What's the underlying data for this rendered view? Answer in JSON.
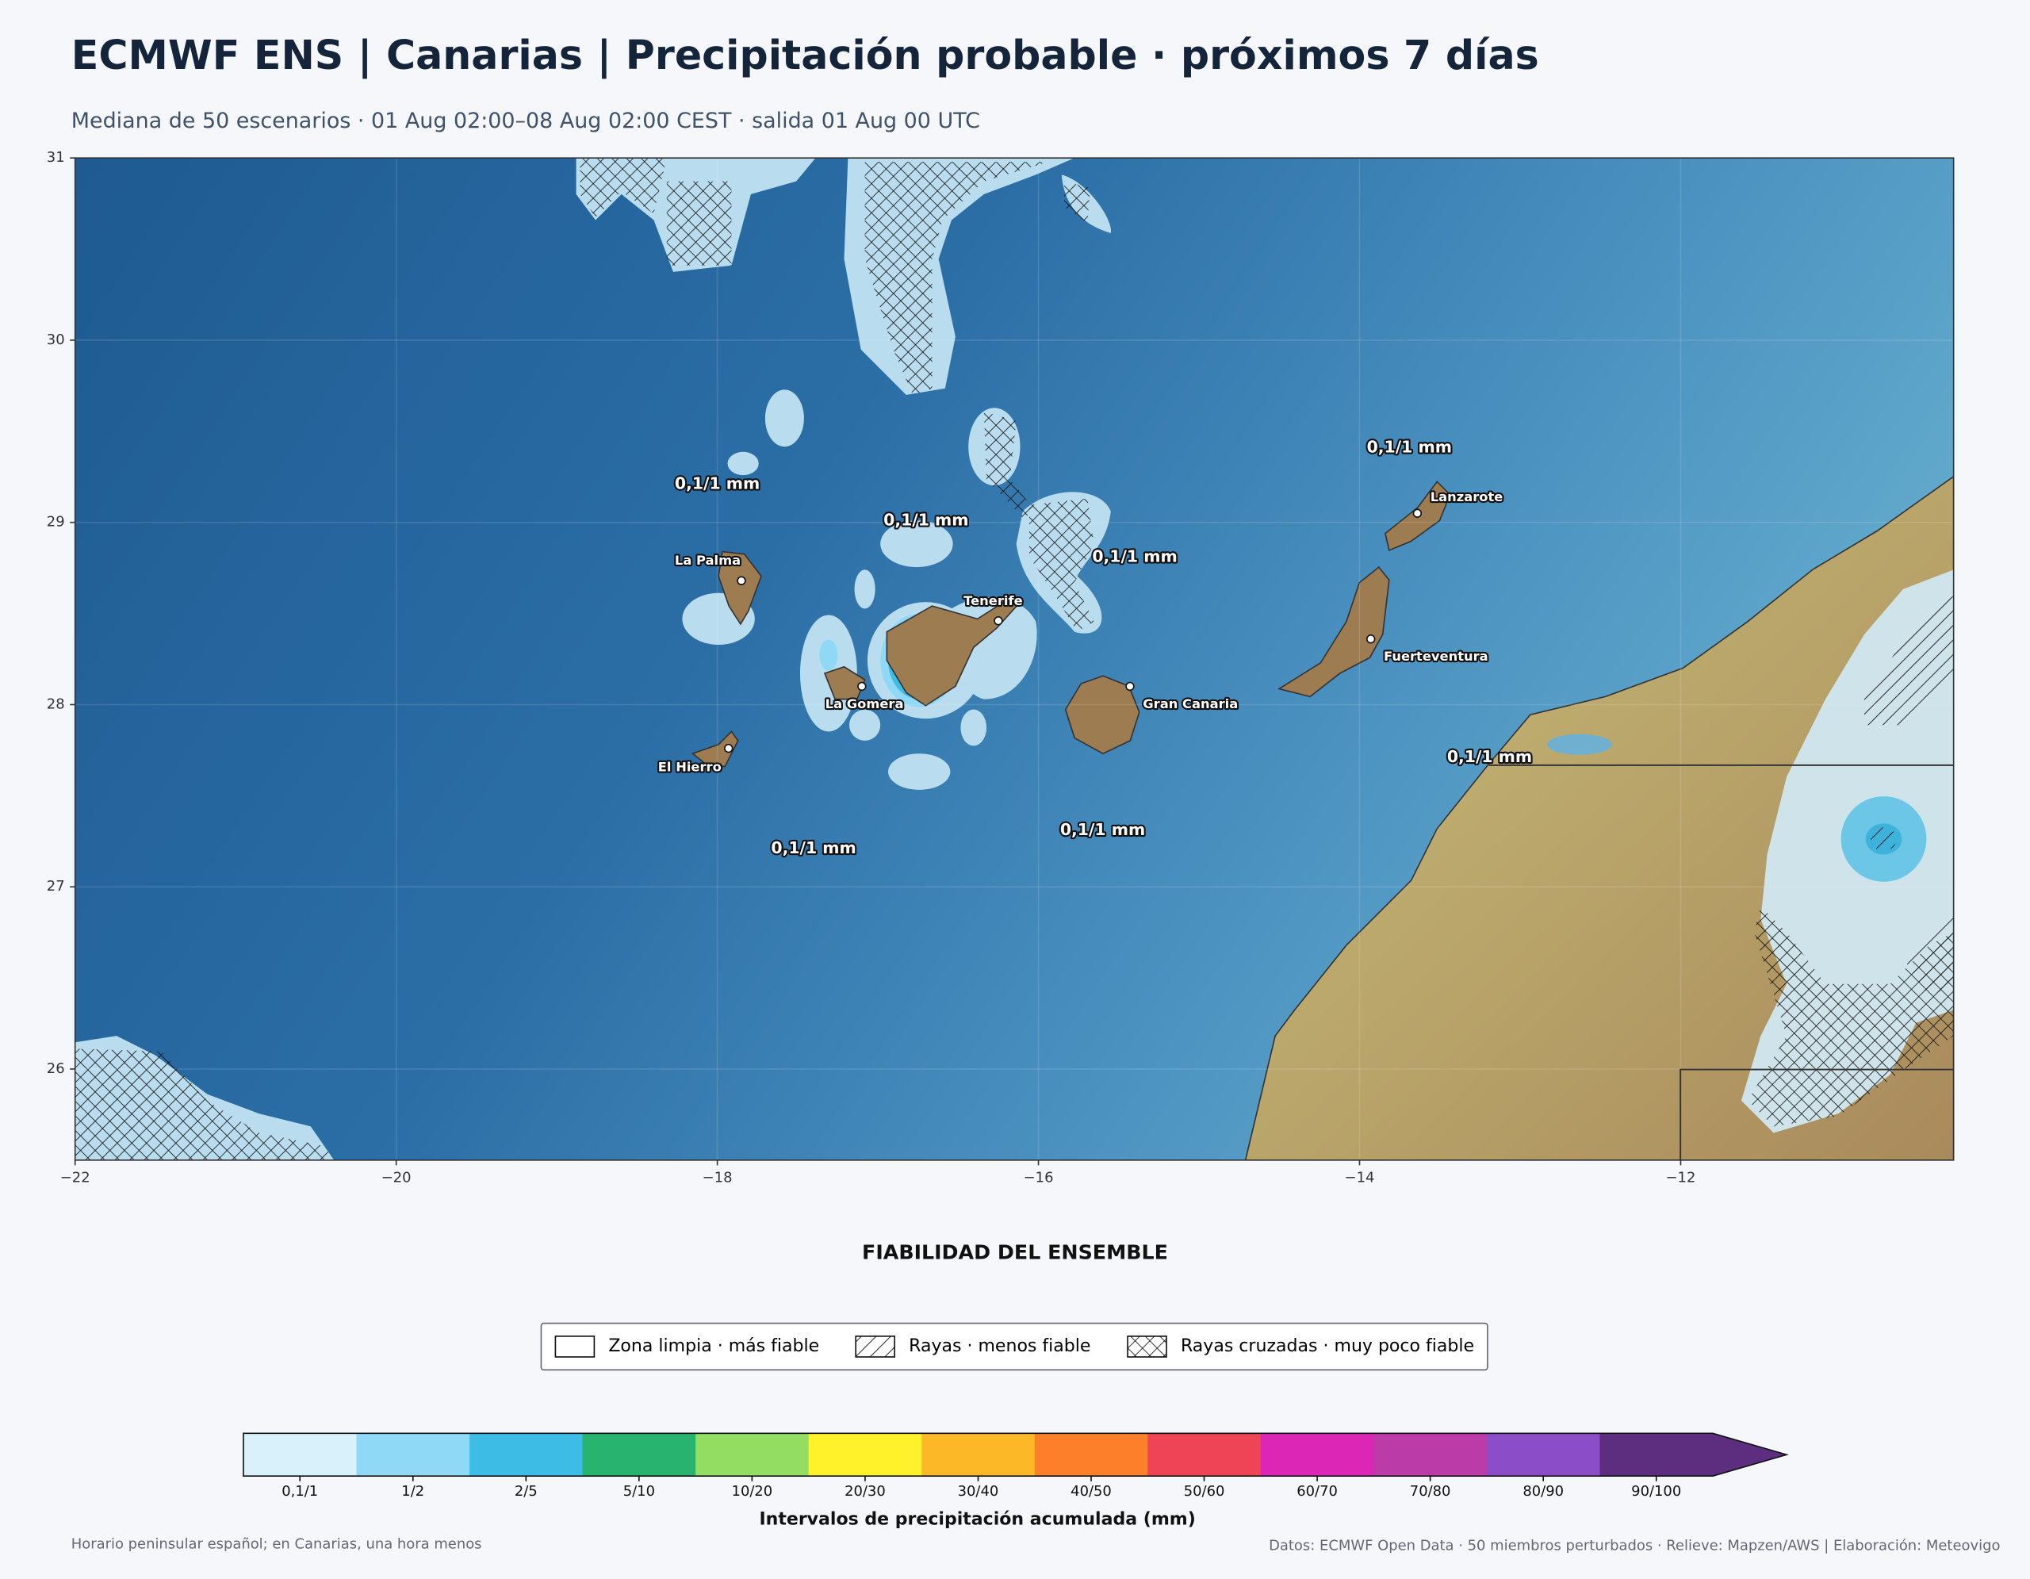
{
  "header": {
    "title": "ECMWF ENS | Canarias | Precipitación probable · próximos 7 días",
    "subtitle": "Mediana de 50 escenarios · 01 Aug 02:00–08 Aug 02:00 CEST · salida 01 Aug 00 UTC"
  },
  "map": {
    "xlim": [
      -22,
      -10.3
    ],
    "ylim": [
      25.5,
      31
    ],
    "xticks": [
      {
        "value": -22,
        "label": "−22"
      },
      {
        "value": -20,
        "label": "−20"
      },
      {
        "value": -18,
        "label": "−18"
      },
      {
        "value": -16,
        "label": "−16"
      },
      {
        "value": -14,
        "label": "−14"
      },
      {
        "value": -12,
        "label": "−12"
      }
    ],
    "yticks": [
      26,
      27,
      28,
      29,
      30,
      31
    ],
    "grid": true,
    "places": [
      {
        "name": "Lanzarote",
        "lon": -13.64,
        "lat": 29.05
      },
      {
        "name": "Fuerteventura",
        "lon": -13.93,
        "lat": 28.36
      },
      {
        "name": "Gran Canaria",
        "lon": -15.43,
        "lat": 28.1
      },
      {
        "name": "Tenerife",
        "lon": -16.25,
        "lat": 28.46
      },
      {
        "name": "La Gomera",
        "lon": -17.1,
        "lat": 28.1
      },
      {
        "name": "La Palma",
        "lon": -17.85,
        "lat": 28.68
      },
      {
        "name": "El Hierro",
        "lon": -17.93,
        "lat": 27.76
      }
    ],
    "annotations": [
      {
        "text": "0,1/1 mm",
        "lon": -18.0,
        "lat": 29.21
      },
      {
        "text": "0,1/1 mm",
        "lon": -16.7,
        "lat": 29.01
      },
      {
        "text": "0,1/1 mm",
        "lon": -15.4,
        "lat": 28.81
      },
      {
        "text": "0,1/1 mm",
        "lon": -13.69,
        "lat": 29.41
      },
      {
        "text": "0,1/1 mm",
        "lon": -13.19,
        "lat": 27.71
      },
      {
        "text": "0,1/1 mm",
        "lon": -15.6,
        "lat": 27.31
      },
      {
        "text": "0,1/1 mm",
        "lon": -17.4,
        "lat": 27.21
      }
    ]
  },
  "legend": {
    "title": "FIABILIDAD DEL ENSEMBLE",
    "items": [
      "Zona limpia · más fiable",
      "Rayas · menos fiable",
      "Rayas cruzadas · muy poco fiable"
    ]
  },
  "colorbar": {
    "label": "Intervalos de precipitación acumulada (mm)",
    "classes": [
      {
        "label": "0,1/1",
        "color": "#d8f1fb"
      },
      {
        "label": "1/2",
        "color": "#8fd9f7"
      },
      {
        "label": "2/5",
        "color": "#3dbde6"
      },
      {
        "label": "5/10",
        "color": "#28b46e"
      },
      {
        "label": "10/20",
        "color": "#93dd63"
      },
      {
        "label": "20/30",
        "color": "#fff22a"
      },
      {
        "label": "30/40",
        "color": "#fdb828"
      },
      {
        "label": "40/50",
        "color": "#fd7f2a"
      },
      {
        "label": "50/60",
        "color": "#ef4356"
      },
      {
        "label": "60/70",
        "color": "#dc27b6"
      },
      {
        "label": "70/80",
        "color": "#bb3ba9"
      },
      {
        "label": "80/90",
        "color": "#8c4dc8"
      },
      {
        "label": "90/100",
        "color": "#5d2e80"
      }
    ]
  },
  "footer": {
    "left": "Horario peninsular español; en Canarias, una hora menos",
    "right": "Datos: ECMWF Open Data · 50 miembros perturbados · Relieve: Mapzen/AWS | Elaboración: Meteovigo"
  }
}
